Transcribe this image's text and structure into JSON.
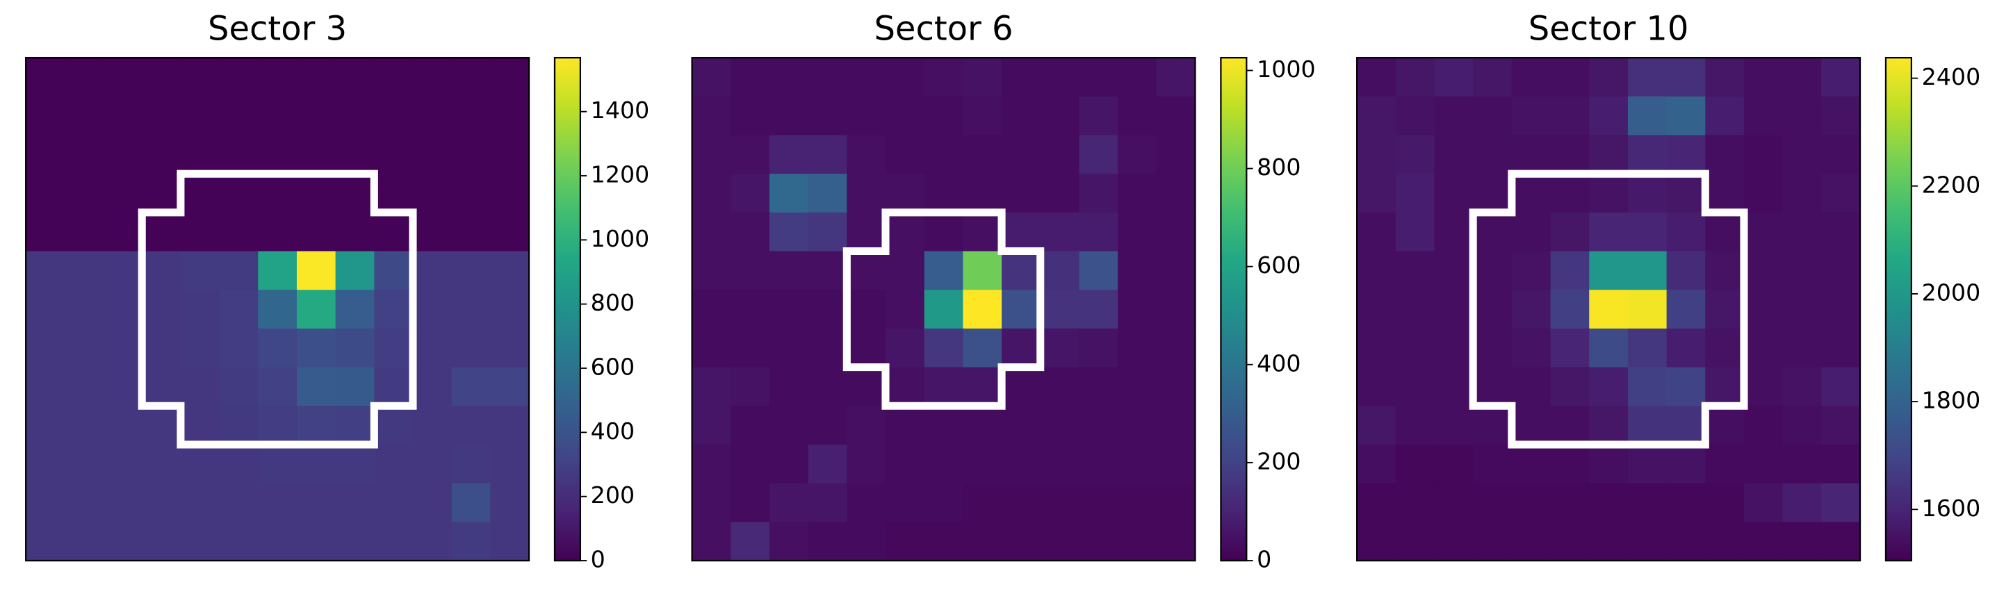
{
  "chart_data": [
    {
      "type": "heatmap",
      "title": "Sector 3",
      "colormap": "viridis",
      "zlim": [
        0,
        1568
      ],
      "zticks": [
        0,
        200,
        400,
        600,
        800,
        1000,
        1200,
        1400
      ],
      "z": [
        [
          10,
          10,
          10,
          10,
          10,
          10,
          10,
          10,
          10,
          10,
          10,
          10,
          10
        ],
        [
          10,
          10,
          10,
          10,
          10,
          10,
          10,
          10,
          10,
          10,
          10,
          10,
          10
        ],
        [
          10,
          10,
          10,
          10,
          10,
          10,
          10,
          10,
          10,
          10,
          10,
          10,
          10
        ],
        [
          10,
          10,
          10,
          10,
          10,
          10,
          10,
          10,
          10,
          10,
          10,
          10,
          10
        ],
        [
          10,
          10,
          10,
          10,
          10,
          10,
          10,
          10,
          10,
          10,
          10,
          10,
          10
        ],
        [
          250,
          250,
          250,
          250,
          270,
          270,
          900,
          1560,
          820,
          350,
          250,
          250,
          250
        ],
        [
          250,
          250,
          250,
          250,
          260,
          280,
          520,
          950,
          460,
          300,
          250,
          250,
          250
        ],
        [
          250,
          250,
          250,
          250,
          260,
          280,
          330,
          380,
          360,
          280,
          250,
          250,
          250
        ],
        [
          250,
          250,
          250,
          250,
          250,
          270,
          300,
          450,
          440,
          270,
          250,
          320,
          320
        ],
        [
          250,
          250,
          250,
          250,
          250,
          260,
          280,
          300,
          290,
          260,
          250,
          250,
          250
        ],
        [
          250,
          250,
          250,
          250,
          250,
          250,
          260,
          260,
          260,
          250,
          250,
          260,
          250
        ],
        [
          250,
          250,
          250,
          250,
          250,
          250,
          250,
          250,
          250,
          250,
          250,
          380,
          250
        ],
        [
          250,
          250,
          250,
          250,
          250,
          250,
          250,
          250,
          250,
          250,
          250,
          270,
          250
        ]
      ]
    },
    {
      "type": "heatmap",
      "title": "Sector 6",
      "colormap": "viridis",
      "zlim": [
        0,
        1026
      ],
      "zticks": [
        0,
        200,
        400,
        600,
        800,
        1000
      ],
      "z": [
        [
          50,
          30,
          30,
          30,
          30,
          30,
          40,
          50,
          30,
          30,
          30,
          30,
          60
        ],
        [
          40,
          30,
          30,
          30,
          30,
          30,
          30,
          40,
          30,
          30,
          60,
          30,
          30
        ],
        [
          40,
          40,
          100,
          100,
          40,
          30,
          30,
          30,
          30,
          30,
          110,
          40,
          30
        ],
        [
          40,
          60,
          350,
          310,
          40,
          40,
          30,
          30,
          30,
          30,
          60,
          30,
          30
        ],
        [
          40,
          40,
          180,
          160,
          40,
          40,
          30,
          40,
          80,
          80,
          80,
          30,
          30
        ],
        [
          40,
          40,
          40,
          40,
          40,
          40,
          300,
          800,
          150,
          140,
          260,
          30,
          30
        ],
        [
          30,
          30,
          30,
          30,
          30,
          40,
          550,
          1030,
          250,
          150,
          150,
          30,
          30
        ],
        [
          30,
          30,
          30,
          30,
          30,
          60,
          160,
          250,
          60,
          60,
          50,
          30,
          30
        ],
        [
          60,
          50,
          30,
          30,
          30,
          40,
          60,
          60,
          30,
          30,
          30,
          30,
          30
        ],
        [
          60,
          30,
          30,
          30,
          40,
          30,
          30,
          30,
          30,
          30,
          30,
          30,
          30
        ],
        [
          40,
          30,
          30,
          90,
          40,
          30,
          30,
          30,
          30,
          30,
          30,
          30,
          30
        ],
        [
          40,
          30,
          60,
          60,
          30,
          30,
          30,
          20,
          20,
          20,
          20,
          20,
          20
        ],
        [
          40,
          120,
          40,
          30,
          30,
          20,
          20,
          20,
          20,
          20,
          20,
          20,
          20
        ]
      ]
    },
    {
      "type": "heatmap",
      "title": "Sector 10",
      "colormap": "viridis",
      "zlim": [
        1505,
        2438
      ],
      "zticks": [
        1600,
        1800,
        2000,
        2200,
        2400
      ],
      "z": [
        [
          1540,
          1560,
          1580,
          1560,
          1540,
          1540,
          1560,
          1630,
          1630,
          1560,
          1540,
          1540,
          1580
        ],
        [
          1560,
          1550,
          1540,
          1540,
          1550,
          1550,
          1580,
          1780,
          1800,
          1580,
          1540,
          1540,
          1550
        ],
        [
          1560,
          1570,
          1540,
          1540,
          1540,
          1540,
          1560,
          1610,
          1600,
          1540,
          1530,
          1540,
          1540
        ],
        [
          1560,
          1580,
          1540,
          1540,
          1540,
          1540,
          1550,
          1570,
          1560,
          1540,
          1530,
          1540,
          1550
        ],
        [
          1540,
          1580,
          1540,
          1540,
          1540,
          1560,
          1600,
          1600,
          1580,
          1540,
          1540,
          1540,
          1540
        ],
        [
          1540,
          1540,
          1540,
          1540,
          1550,
          1650,
          1990,
          1990,
          1620,
          1550,
          1540,
          1540,
          1540
        ],
        [
          1540,
          1540,
          1540,
          1540,
          1560,
          1680,
          2430,
          2420,
          1680,
          1560,
          1540,
          1540,
          1540
        ],
        [
          1540,
          1540,
          1540,
          1540,
          1550,
          1600,
          1720,
          1650,
          1580,
          1550,
          1540,
          1540,
          1540
        ],
        [
          1540,
          1540,
          1540,
          1540,
          1540,
          1560,
          1580,
          1680,
          1690,
          1560,
          1540,
          1550,
          1580
        ],
        [
          1560,
          1540,
          1540,
          1540,
          1540,
          1540,
          1560,
          1640,
          1640,
          1540,
          1530,
          1540,
          1550
        ],
        [
          1540,
          1520,
          1520,
          1530,
          1530,
          1530,
          1540,
          1550,
          1550,
          1530,
          1530,
          1530,
          1530
        ],
        [
          1520,
          1520,
          1520,
          1520,
          1520,
          1520,
          1520,
          1520,
          1520,
          1520,
          1550,
          1580,
          1600
        ],
        [
          1520,
          1520,
          1520,
          1520,
          1520,
          1520,
          1520,
          1520,
          1520,
          1520,
          1520,
          1520,
          1520
        ]
      ]
    }
  ]
}
